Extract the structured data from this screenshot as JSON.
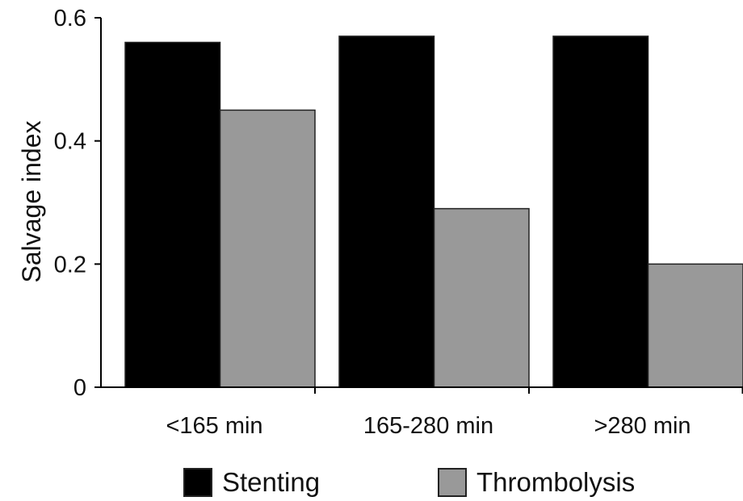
{
  "chart_data": {
    "type": "bar",
    "title": "",
    "xlabel": "",
    "ylabel": "Salvage index",
    "categories": [
      "<165 min",
      "165-280 min",
      ">280 min"
    ],
    "series": [
      {
        "name": "Stenting",
        "values": [
          0.56,
          0.57,
          0.57
        ],
        "color": "#000000"
      },
      {
        "name": "Thrombolysis",
        "values": [
          0.45,
          0.29,
          0.2
        ],
        "color": "#999999"
      }
    ],
    "ylim": [
      0,
      0.6
    ],
    "yticks": [
      0,
      0.2,
      0.4,
      0.6
    ],
    "ytick_labels": [
      "0",
      "0.2",
      "0.4",
      "0.6"
    ],
    "grid": false,
    "legend_position": "bottom"
  }
}
